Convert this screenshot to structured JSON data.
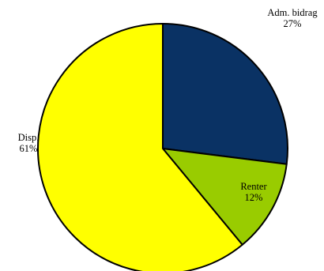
{
  "chart_data": {
    "type": "pie",
    "slices": [
      {
        "label": "Adm. bidrag",
        "pct_label": "27%",
        "value": 27,
        "color": "#0a3264"
      },
      {
        "label": "Renter",
        "pct_label": "12%",
        "value": 12,
        "color": "#99cc00"
      },
      {
        "label": "Disp.",
        "pct_label": "61%",
        "value": 61,
        "color": "#ffff00"
      }
    ],
    "start_angle_deg": 0,
    "direction": "clockwise",
    "legend": "none",
    "title": ""
  }
}
